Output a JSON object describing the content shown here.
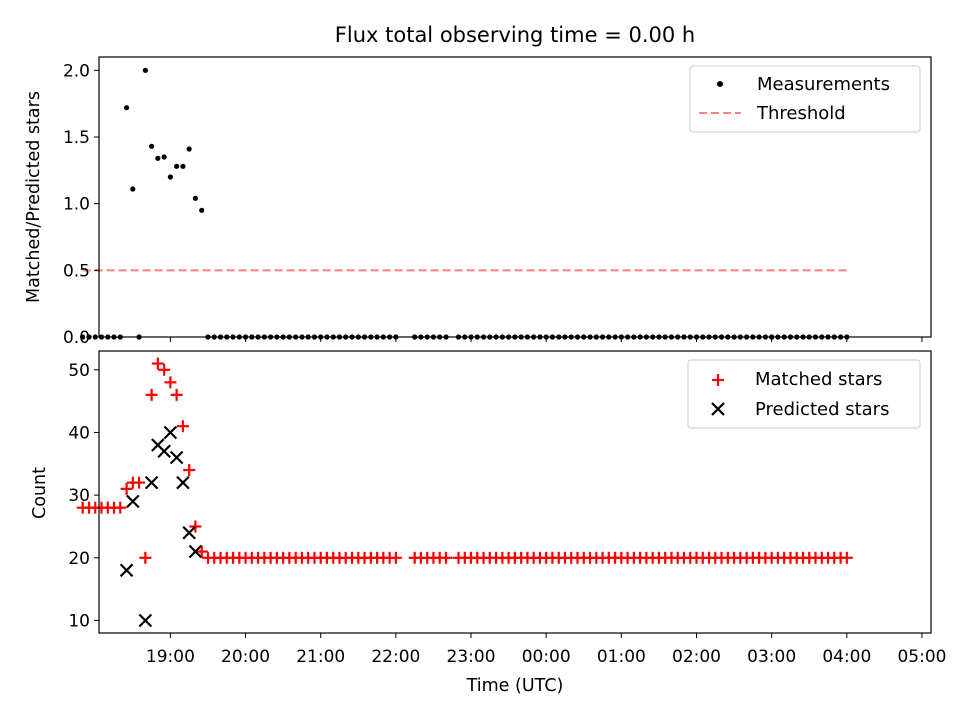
{
  "chart_data": [
    {
      "type": "scatter",
      "title": "Flux total observing time = 0.00 h",
      "xlabel": "",
      "ylabel": "Matched/Predicted stars",
      "xlim": [
        -0.95,
        10.12
      ],
      "ylim": [
        0,
        2.1
      ],
      "yticks": [
        "0.0",
        "0.5",
        "1.0",
        "1.5",
        "2.0"
      ],
      "legend": {
        "location": "top-right",
        "entries": [
          "Measurements",
          "Threshold"
        ]
      },
      "threshold": {
        "name": "Threshold",
        "y": 0.5,
        "x_range": [
          -1.167,
          9.0
        ],
        "color": "#ff7f7f",
        "style": "dashed"
      },
      "series": [
        {
          "name": "Measurements",
          "color": "#000000",
          "marker": "dot",
          "x": [
            -1.167,
            -1.083,
            -1.0,
            -0.917,
            -0.833,
            -0.75,
            -0.667,
            -0.583,
            -0.5,
            -0.417,
            -0.333,
            -0.25,
            -0.167,
            -0.083,
            0.0,
            0.083,
            0.167,
            0.25,
            0.333,
            0.417,
            0.5,
            0.583,
            0.667,
            0.75,
            0.833,
            0.917,
            1.0,
            1.083,
            1.167,
            1.25,
            1.333,
            1.417,
            1.5,
            1.583,
            1.667,
            1.75,
            1.833,
            1.917,
            2.0,
            2.083,
            2.167,
            2.25,
            2.333,
            2.417,
            2.5,
            2.583,
            2.667,
            2.75,
            2.833,
            2.917,
            3.0,
            3.25,
            3.333,
            3.417,
            3.5,
            3.583,
            3.667,
            3.833,
            3.917,
            4.0,
            4.083,
            4.167,
            4.25,
            4.333,
            4.417,
            4.5,
            4.583,
            4.667,
            4.75,
            4.833,
            4.917,
            5.0,
            5.083,
            5.167,
            5.25,
            5.333,
            5.417,
            5.5,
            5.583,
            5.667,
            5.75,
            5.833,
            5.917,
            6.0,
            6.083,
            6.167,
            6.25,
            6.333,
            6.417,
            6.5,
            6.583,
            6.667,
            6.75,
            6.833,
            6.917,
            7.0,
            7.083,
            7.167,
            7.25,
            7.333,
            7.417,
            7.5,
            7.583,
            7.667,
            7.75,
            7.833,
            7.917,
            8.0,
            8.083,
            8.167,
            8.25,
            8.333,
            8.417,
            8.5,
            8.583,
            8.667,
            8.75,
            8.833,
            8.917,
            9.0
          ],
          "y": [
            0,
            0,
            0,
            0,
            0,
            0,
            0,
            1.72,
            1.11,
            0,
            2.0,
            1.43,
            1.34,
            1.35,
            1.2,
            1.28,
            1.28,
            1.41,
            1.04,
            0.95,
            0,
            0,
            0,
            0,
            0,
            0,
            0,
            0,
            0,
            0,
            0,
            0,
            0,
            0,
            0,
            0,
            0,
            0,
            0,
            0,
            0,
            0,
            0,
            0,
            0,
            0,
            0,
            0,
            0,
            0,
            0,
            0,
            0,
            0,
            0,
            0,
            0,
            0,
            0,
            0,
            0,
            0,
            0,
            0,
            0,
            0,
            0,
            0,
            0,
            0,
            0,
            0,
            0,
            0,
            0,
            0,
            0,
            0,
            0,
            0,
            0,
            0,
            0,
            0,
            0,
            0,
            0,
            0,
            0,
            0,
            0,
            0,
            0,
            0,
            0,
            0,
            0,
            0,
            0,
            0,
            0,
            0,
            0,
            0,
            0,
            0,
            0,
            0,
            0,
            0,
            0,
            0,
            0,
            0,
            0,
            0,
            0,
            0,
            0,
            0
          ]
        }
      ]
    },
    {
      "type": "scatter",
      "title": "",
      "xlabel": "Time (UTC)",
      "ylabel": "Count",
      "xlim": [
        -0.95,
        10.12
      ],
      "ylim": [
        8,
        53
      ],
      "yticks": [
        "10",
        "20",
        "30",
        "40",
        "50"
      ],
      "xticks": [
        "19:00",
        "20:00",
        "21:00",
        "22:00",
        "23:00",
        "00:00",
        "01:00",
        "02:00",
        "03:00",
        "04:00",
        "05:00"
      ],
      "legend": {
        "location": "top-right",
        "entries": [
          "Matched stars",
          "Predicted stars"
        ]
      },
      "series": [
        {
          "name": "Matched stars",
          "color": "#ff0000",
          "marker": "plus",
          "x": [
            -1.167,
            -1.083,
            -1.0,
            -0.917,
            -0.833,
            -0.75,
            -0.667,
            -0.583,
            -0.5,
            -0.417,
            -0.333,
            -0.25,
            -0.167,
            -0.083,
            0.0,
            0.083,
            0.167,
            0.25,
            0.333,
            0.417,
            0.5,
            0.583,
            0.667,
            0.75,
            0.833,
            0.917,
            1.0,
            1.083,
            1.167,
            1.25,
            1.333,
            1.417,
            1.5,
            1.583,
            1.667,
            1.75,
            1.833,
            1.917,
            2.0,
            2.083,
            2.167,
            2.25,
            2.333,
            2.417,
            2.5,
            2.583,
            2.667,
            2.75,
            2.833,
            2.917,
            3.0,
            3.25,
            3.333,
            3.417,
            3.5,
            3.583,
            3.667,
            3.833,
            3.917,
            4.0,
            4.083,
            4.167,
            4.25,
            4.333,
            4.417,
            4.5,
            4.583,
            4.667,
            4.75,
            4.833,
            4.917,
            5.0,
            5.083,
            5.167,
            5.25,
            5.333,
            5.417,
            5.5,
            5.583,
            5.667,
            5.75,
            5.833,
            5.917,
            6.0,
            6.083,
            6.167,
            6.25,
            6.333,
            6.417,
            6.5,
            6.583,
            6.667,
            6.75,
            6.833,
            6.917,
            7.0,
            7.083,
            7.167,
            7.25,
            7.333,
            7.417,
            7.5,
            7.583,
            7.667,
            7.75,
            7.833,
            7.917,
            8.0,
            8.083,
            8.167,
            8.25,
            8.333,
            8.417,
            8.5,
            8.583,
            8.667,
            8.75,
            8.833,
            8.917,
            9.0
          ],
          "y": [
            28,
            28,
            28,
            28,
            28,
            28,
            28,
            31,
            32,
            32,
            20,
            46,
            51,
            50,
            48,
            46,
            41,
            34,
            25,
            21,
            20,
            20,
            20,
            20,
            20,
            20,
            20,
            20,
            20,
            20,
            20,
            20,
            20,
            20,
            20,
            20,
            20,
            20,
            20,
            20,
            20,
            20,
            20,
            20,
            20,
            20,
            20,
            20,
            20,
            20,
            20,
            20,
            20,
            20,
            20,
            20,
            20,
            20,
            20,
            20,
            20,
            20,
            20,
            20,
            20,
            20,
            20,
            20,
            20,
            20,
            20,
            20,
            20,
            20,
            20,
            20,
            20,
            20,
            20,
            20,
            20,
            20,
            20,
            20,
            20,
            20,
            20,
            20,
            20,
            20,
            20,
            20,
            20,
            20,
            20,
            20,
            20,
            20,
            20,
            20,
            20,
            20,
            20,
            20,
            20,
            20,
            20,
            20,
            20,
            20,
            20,
            20,
            20,
            20,
            20,
            20,
            20,
            20,
            20,
            20
          ]
        },
        {
          "name": "Predicted stars",
          "color": "#000000",
          "marker": "x",
          "x": [
            -0.583,
            -0.5,
            -0.333,
            -0.25,
            -0.167,
            -0.083,
            0.0,
            0.083,
            0.167,
            0.25,
            0.333
          ],
          "y": [
            18,
            29,
            10,
            32,
            38,
            37,
            40,
            36,
            32,
            24,
            21
          ]
        }
      ]
    }
  ]
}
